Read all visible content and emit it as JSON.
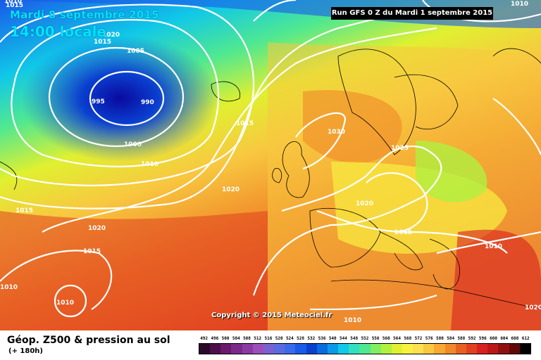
{
  "header": {
    "date": "Mardi 8 septembre 2015",
    "time": "14:00 locale",
    "run": "Run GFS 0 Z du Mardi 1 septembre 2015"
  },
  "copyright": "Copyright © 2015 Meteociel.fr",
  "footer": {
    "title": "Géop. Z500 & pression au sol",
    "subtitle": "(+ 180h)"
  },
  "isobar_labels": [
    "1010",
    "1015",
    "1020",
    "1015",
    "1005",
    "995",
    "990",
    "1000",
    "1010",
    "1015",
    "1015",
    "1020",
    "1030",
    "1025",
    "1020",
    "1020",
    "1015",
    "1010",
    "1015",
    "1010",
    "1010",
    "1010",
    "1020",
    "1010",
    "1015"
  ],
  "scale": {
    "values": [
      "492",
      "496",
      "500",
      "504",
      "508",
      "512",
      "516",
      "520",
      "524",
      "528",
      "532",
      "536",
      "540",
      "544",
      "548",
      "552",
      "556",
      "560",
      "564",
      "568",
      "572",
      "576",
      "580",
      "584",
      "588",
      "592",
      "596",
      "600",
      "604",
      "608",
      "612"
    ],
    "colors": [
      "#2a0a2a",
      "#4b0f4b",
      "#6a1a6a",
      "#7a2a8a",
      "#8a3aa0",
      "#9a50b8",
      "#7a60d0",
      "#5a6ae0",
      "#3a6ae8",
      "#1a5ae8",
      "#0a40d0",
      "#0a6ae0",
      "#0a9ae8",
      "#10c8e8",
      "#30e0c0",
      "#50e890",
      "#80ee60",
      "#b0f040",
      "#e0f030",
      "#f8f040",
      "#fce050",
      "#f8c840",
      "#f8a830",
      "#f08828",
      "#e86020",
      "#e04020",
      "#d82020",
      "#b81818",
      "#901010",
      "#600808",
      "#000000"
    ]
  }
}
